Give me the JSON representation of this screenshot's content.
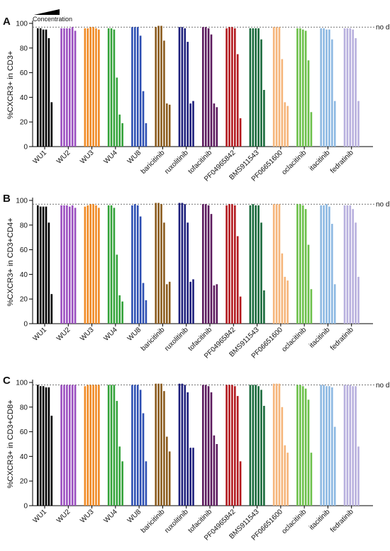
{
  "chart_data": [
    {
      "type": "bar",
      "panel": "A",
      "y_label": "%CXCR3+ in CD3+",
      "annotation": "Concentration",
      "ylim": [
        0,
        100
      ],
      "yticks": [
        0,
        20,
        40,
        60,
        80,
        100
      ],
      "reference_line": {
        "value": 97,
        "label": "no drug"
      },
      "series": [
        {
          "name": "WU1",
          "color": "#000000",
          "values": [
            96,
            96,
            95,
            95,
            88,
            36
          ]
        },
        {
          "name": "WU2",
          "color": "#9b4fc0",
          "values": [
            96,
            96,
            96,
            96,
            97,
            94
          ]
        },
        {
          "name": "WU3",
          "color": "#f08a24",
          "values": [
            96,
            96,
            97,
            97,
            96,
            95
          ]
        },
        {
          "name": "WU4",
          "color": "#34a33a",
          "values": [
            96,
            96,
            95,
            56,
            26,
            19
          ]
        },
        {
          "name": "WU8",
          "color": "#2d4fb3",
          "values": [
            97,
            97,
            97,
            90,
            45,
            19
          ]
        },
        {
          "name": "baricitinib",
          "color": "#8a5a1c",
          "values": [
            97,
            98,
            98,
            86,
            35,
            34
          ]
        },
        {
          "name": "ruxolitinib",
          "color": "#1d1f7c",
          "values": [
            97,
            97,
            96,
            85,
            35,
            37
          ]
        },
        {
          "name": "tofacitinib",
          "color": "#5c1a5e",
          "values": [
            97,
            97,
            96,
            91,
            35,
            32
          ]
        },
        {
          "name": "PF04965842",
          "color": "#b3191e",
          "values": [
            96,
            97,
            97,
            96,
            75,
            23
          ]
        },
        {
          "name": "BMS911543",
          "color": "#17693a",
          "values": [
            96,
            96,
            96,
            96,
            87,
            46
          ]
        },
        {
          "name": "PF06651600",
          "color": "#f6b57a",
          "values": [
            97,
            97,
            97,
            71,
            36,
            33
          ]
        },
        {
          "name": "oclacitinib",
          "color": "#6cc04a",
          "values": [
            96,
            96,
            95,
            94,
            70,
            28
          ]
        },
        {
          "name": "itacitinib",
          "color": "#8cb8e2",
          "values": [
            96,
            96,
            95,
            95,
            87,
            37
          ]
        },
        {
          "name": "fedratinib",
          "color": "#b8b0de",
          "values": [
            96,
            96,
            96,
            95,
            88,
            37
          ]
        }
      ]
    },
    {
      "type": "bar",
      "panel": "B",
      "y_label": "%CXCR3+ in CD3+CD4+",
      "ylim": [
        0,
        100
      ],
      "yticks": [
        0,
        20,
        40,
        60,
        80,
        100
      ],
      "reference_line": {
        "value": 97,
        "label": "no drug"
      },
      "series": [
        {
          "name": "WU1",
          "color": "#000000",
          "values": [
            96,
            95,
            95,
            95,
            82,
            24
          ]
        },
        {
          "name": "WU2",
          "color": "#9b4fc0",
          "values": [
            96,
            96,
            96,
            95,
            96,
            94
          ]
        },
        {
          "name": "WU3",
          "color": "#f08a24",
          "values": [
            95,
            96,
            97,
            97,
            96,
            94
          ]
        },
        {
          "name": "WU4",
          "color": "#34a33a",
          "values": [
            96,
            96,
            94,
            56,
            23,
            18
          ]
        },
        {
          "name": "WU8",
          "color": "#2d4fb3",
          "values": [
            96,
            97,
            96,
            87,
            33,
            19
          ]
        },
        {
          "name": "baricitinib",
          "color": "#8a5a1c",
          "values": [
            98,
            98,
            97,
            82,
            32,
            34
          ]
        },
        {
          "name": "ruxolitinib",
          "color": "#1d1f7c",
          "values": [
            98,
            98,
            97,
            82,
            34,
            36
          ]
        },
        {
          "name": "tofacitinib",
          "color": "#5c1a5e",
          "values": [
            97,
            97,
            96,
            89,
            31,
            32
          ]
        },
        {
          "name": "PF04965842",
          "color": "#b3191e",
          "values": [
            96,
            97,
            97,
            96,
            71,
            22
          ]
        },
        {
          "name": "BMS911543",
          "color": "#17693a",
          "values": [
            96,
            97,
            96,
            96,
            82,
            27
          ]
        },
        {
          "name": "PF06651600",
          "color": "#f6b57a",
          "values": [
            97,
            97,
            97,
            57,
            38,
            35
          ]
        },
        {
          "name": "oclacitinib",
          "color": "#6cc04a",
          "values": [
            97,
            97,
            96,
            93,
            64,
            28
          ]
        },
        {
          "name": "itacitinib",
          "color": "#8cb8e2",
          "values": [
            96,
            96,
            97,
            95,
            81,
            32
          ]
        },
        {
          "name": "fedratinib",
          "color": "#b8b0de",
          "values": [
            96,
            96,
            96,
            93,
            82,
            38
          ]
        }
      ]
    },
    {
      "type": "bar",
      "panel": "C",
      "y_label": "%CXCR3+ in CD3+CD8+",
      "ylim": [
        0,
        100
      ],
      "yticks": [
        0,
        20,
        40,
        60,
        80,
        100
      ],
      "reference_line": {
        "value": 98,
        "label": "no drug"
      },
      "series": [
        {
          "name": "WU1",
          "color": "#000000",
          "values": [
            98,
            97,
            97,
            96,
            96,
            73
          ]
        },
        {
          "name": "WU2",
          "color": "#9b4fc0",
          "values": [
            98,
            98,
            98,
            98,
            98,
            98
          ]
        },
        {
          "name": "WU3",
          "color": "#f08a24",
          "values": [
            97,
            98,
            98,
            98,
            98,
            98
          ]
        },
        {
          "name": "WU4",
          "color": "#34a33a",
          "values": [
            98,
            98,
            98,
            85,
            48,
            36
          ]
        },
        {
          "name": "WU8",
          "color": "#2d4fb3",
          "values": [
            98,
            98,
            98,
            94,
            75,
            36
          ]
        },
        {
          "name": "baricitinib",
          "color": "#8a5a1c",
          "values": [
            99,
            99,
            99,
            93,
            56,
            44
          ]
        },
        {
          "name": "ruxolitinib",
          "color": "#1d1f7c",
          "values": [
            99,
            99,
            98,
            92,
            47,
            47
          ]
        },
        {
          "name": "tofacitinib",
          "color": "#5c1a5e",
          "values": [
            98,
            98,
            97,
            92,
            57,
            50
          ]
        },
        {
          "name": "PF04965842",
          "color": "#b3191e",
          "values": [
            98,
            98,
            98,
            97,
            89,
            36
          ]
        },
        {
          "name": "BMS911543",
          "color": "#17693a",
          "values": [
            98,
            98,
            98,
            97,
            94,
            81
          ]
        },
        {
          "name": "PF06651600",
          "color": "#f6b57a",
          "values": [
            99,
            99,
            99,
            80,
            49,
            43
          ]
        },
        {
          "name": "oclacitinib",
          "color": "#6cc04a",
          "values": [
            98,
            98,
            97,
            95,
            86,
            43
          ]
        },
        {
          "name": "itacitinib",
          "color": "#8cb8e2",
          "values": [
            98,
            98,
            97,
            97,
            96,
            64
          ]
        },
        {
          "name": "fedratinib",
          "color": "#b8b0de",
          "values": [
            98,
            98,
            98,
            97,
            97,
            48
          ]
        }
      ]
    }
  ]
}
